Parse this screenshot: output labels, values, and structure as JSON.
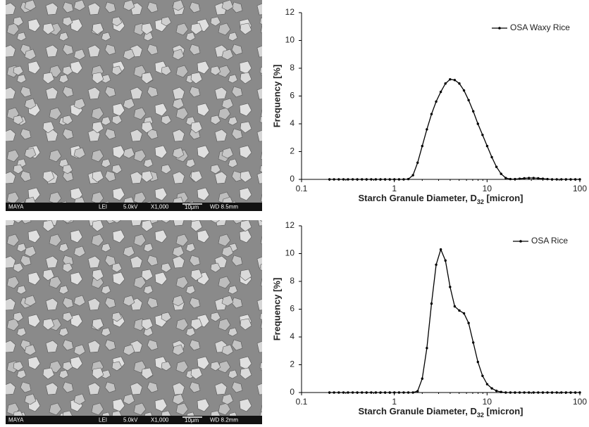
{
  "images": [
    {
      "labels": [
        "MAYA",
        "LEI",
        "5.0kV",
        "X1,000",
        "10μm",
        "WD 8.5mm"
      ]
    },
    {
      "labels": [
        "MAYA",
        "LEI",
        "5.0kV",
        "X1,000",
        "10μm",
        "WD 8.2mm"
      ]
    }
  ],
  "chart_data": [
    {
      "type": "line",
      "xscale": "log",
      "legend": "upper right",
      "ylabel": "Frequency [%]",
      "xlabel": "Starch Granule Diameter, D",
      "xlabel_sub": "32",
      "xlabel_end": " [micron]",
      "xlim": [
        0.1,
        100
      ],
      "xticks": [
        0.1,
        1,
        10,
        100
      ],
      "ylim": [
        0,
        12
      ],
      "yticks": [
        0,
        2,
        4,
        6,
        8,
        10,
        12
      ],
      "x": [
        0.2,
        0.224,
        0.252,
        0.283,
        0.317,
        0.356,
        0.399,
        0.448,
        0.502,
        0.564,
        0.632,
        0.71,
        0.796,
        0.893,
        1.002,
        1.125,
        1.262,
        1.416,
        1.589,
        1.783,
        2.0,
        2.244,
        2.518,
        2.825,
        3.17,
        3.557,
        3.991,
        4.477,
        5.024,
        5.637,
        6.325,
        7.096,
        7.962,
        8.934,
        10.02,
        11.25,
        12.62,
        14.16,
        15.89,
        17.83,
        20.0,
        22.44,
        25.18,
        28.25,
        31.7,
        35.57,
        39.91,
        44.77,
        50.24,
        56.37,
        63.25,
        70.96,
        79.62,
        89.34,
        100
      ],
      "series": [
        {
          "name": "OSA Waxy Rice",
          "color": "#000000",
          "values": [
            0,
            0,
            0,
            0,
            0,
            0,
            0,
            0,
            0,
            0,
            0,
            0,
            0,
            0,
            0,
            0,
            0,
            0.02,
            0.3,
            1.2,
            2.4,
            3.6,
            4.7,
            5.6,
            6.3,
            6.9,
            7.2,
            7.15,
            6.9,
            6.4,
            5.7,
            4.9,
            4.0,
            3.2,
            2.4,
            1.6,
            0.9,
            0.4,
            0.1,
            0.02,
            0.02,
            0.05,
            0.08,
            0.1,
            0.1,
            0.08,
            0.05,
            0.02,
            0,
            0,
            0,
            0,
            0,
            0,
            0
          ]
        }
      ]
    },
    {
      "type": "line",
      "xscale": "log",
      "legend": "upper right",
      "ylabel": "Frequency [%]",
      "xlabel": "Starch Granule Diameter, D",
      "xlabel_sub": "32",
      "xlabel_end": " [micron]",
      "xlim": [
        0.1,
        100
      ],
      "xticks": [
        0.1,
        1,
        10,
        100
      ],
      "ylim": [
        0,
        12
      ],
      "yticks": [
        0,
        2,
        4,
        6,
        8,
        10,
        12
      ],
      "x": [
        0.2,
        0.224,
        0.252,
        0.283,
        0.317,
        0.356,
        0.399,
        0.448,
        0.502,
        0.564,
        0.632,
        0.71,
        0.796,
        0.893,
        1.002,
        1.125,
        1.262,
        1.416,
        1.589,
        1.783,
        2.0,
        2.244,
        2.518,
        2.825,
        3.17,
        3.557,
        3.991,
        4.477,
        5.024,
        5.637,
        6.325,
        7.096,
        7.962,
        8.934,
        10.02,
        11.25,
        12.62,
        14.16,
        15.89,
        17.83,
        20.0,
        22.44,
        25.18,
        28.25,
        31.7,
        35.57,
        39.91,
        44.77,
        50.24,
        56.37,
        63.25,
        70.96,
        79.62,
        89.34,
        100
      ],
      "series": [
        {
          "name": "OSA Rice",
          "color": "#000000",
          "values": [
            0,
            0,
            0,
            0,
            0,
            0,
            0,
            0,
            0,
            0,
            0,
            0,
            0,
            0,
            0,
            0,
            0,
            0,
            0,
            0.1,
            1.0,
            3.2,
            6.4,
            9.2,
            10.3,
            9.5,
            7.6,
            6.2,
            5.9,
            5.7,
            5.0,
            3.6,
            2.2,
            1.2,
            0.6,
            0.3,
            0.12,
            0.04,
            0,
            0,
            0,
            0,
            0,
            0,
            0,
            0,
            0,
            0,
            0,
            0,
            0,
            0,
            0,
            0,
            0
          ]
        }
      ]
    }
  ]
}
